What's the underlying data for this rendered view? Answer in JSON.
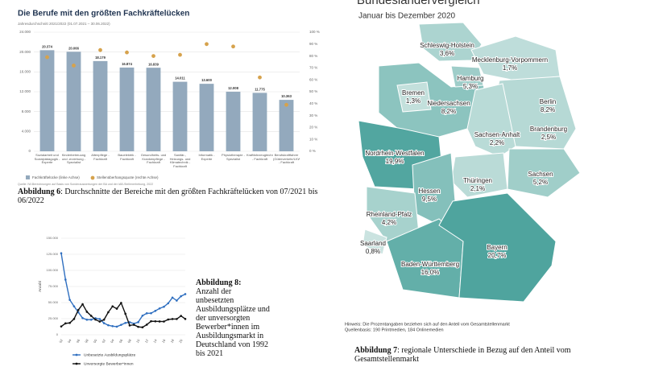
{
  "chart_data": [
    {
      "type": "bar",
      "title": "Die Berufe mit den größten Fachkräftelücken",
      "subtitle": "Jahresdurchschnitt 2021/2022 (01.07.2021 – 30.06.2022)",
      "categories": [
        "Sozialarbeit und Sozialpädagogik - Experte",
        "Kinderbetreuung und -erziehung - Spezialist",
        "Altenpflege - Fachkraft",
        "Bauelektrik - Fachkraft",
        "Gesundheits- und Krankenpflege - Fachkraft",
        "Sanitär-, Heizungs- und Klimatechnik - Fachkraft",
        "Informatik - Experte",
        "Physiotherapie - Spezialist",
        "Kraftfahrzeugtechnik - Fachkraft",
        "Berufskraftfahrer (Güterverkehr/LKW) - Fachkraft"
      ],
      "series": [
        {
          "name": "Fachkräftelücke (linke Achse)",
          "color": "#93a9bd",
          "values": [
            20374,
            20066,
            18179,
            16874,
            16839,
            14011,
            13600,
            12008,
            11775,
            10363
          ],
          "value_labels": [
            "20.374",
            "20.066",
            "18.179",
            "16.874",
            "16.839",
            "14.011",
            "13.600",
            "12.008",
            "11.775",
            "10.363"
          ]
        },
        {
          "name": "Stellenüberhangsquote (rechte Achse)",
          "color": "#d6a24c",
          "axis": "y2",
          "values": [
            79,
            72,
            85,
            83,
            80,
            81,
            90,
            88,
            62,
            39
          ]
        }
      ],
      "ylim": [
        0,
        24000
      ],
      "yticks": [
        0,
        {
          "value": 4000,
          "label": "4.000"
        },
        {
          "value": 8000,
          "label": "8.000"
        },
        {
          "value": 12000,
          "label": "12.000"
        },
        {
          "value": 16000,
          "label": "16.000"
        },
        {
          "value": 20000,
          "label": "20.000"
        },
        {
          "value": 24000,
          "label": "24.000"
        }
      ],
      "y2lim": [
        0,
        100
      ],
      "y2ticks": [
        {
          "value": 0,
          "label": "0 %"
        },
        {
          "value": 10,
          "label": "10 %"
        },
        {
          "value": 20,
          "label": "20 %"
        },
        {
          "value": 30,
          "label": "30 %"
        },
        {
          "value": 40,
          "label": "40 %"
        },
        {
          "value": 50,
          "label": "50 %"
        },
        {
          "value": 60,
          "label": "60 %"
        },
        {
          "value": 70,
          "label": "70 %"
        },
        {
          "value": 80,
          "label": "80 %"
        },
        {
          "value": 90,
          "label": "90 %"
        },
        {
          "value": 100,
          "label": "100 %"
        }
      ],
      "grid": true,
      "source": "Quelle: IW-Berechnungen auf Basis von Sonderauswertungen der BA und der IAB-Stellenerhebung, 2022"
    },
    {
      "type": "line",
      "ylabel": "Anzahl",
      "categories": [
        "92",
        null,
        "94",
        null,
        "96",
        null,
        "98",
        null,
        "00",
        null,
        "02",
        null,
        "04",
        null,
        "06",
        null,
        "08",
        null,
        "10",
        null,
        "12",
        null,
        "14",
        null,
        "16",
        null,
        "18",
        null,
        "20",
        null
      ],
      "series": [
        {
          "name": "Unbesetzte Ausbildungsplätze",
          "color": "#2f6fc0",
          "values": [
            126600,
            85700,
            54200,
            44200,
            34900,
            25900,
            23400,
            23400,
            25700,
            24500,
            18000,
            14800,
            13400,
            12600,
            15400,
            18400,
            19500,
            17300,
            19600,
            29700,
            33300,
            33500,
            37100,
            40900,
            43500,
            48900,
            57700,
            53100,
            59900,
            63200
          ]
        },
        {
          "name": "Unversorgte Bewerber*innen",
          "color": "#111111",
          "values": [
            12900,
            17700,
            18400,
            24600,
            38500,
            47400,
            35700,
            29400,
            23600,
            20500,
            23400,
            35000,
            44100,
            40500,
            49500,
            32700,
            14500,
            15500,
            12300,
            11600,
            15700,
            21000,
            20900,
            20700,
            20600,
            23700,
            24500,
            24500,
            29300,
            24600
          ]
        }
      ],
      "ylim": [
        0,
        150000
      ],
      "yticks": [
        0,
        {
          "value": 25000,
          "label": "25.000"
        },
        {
          "value": 50000,
          "label": "50.000"
        },
        {
          "value": 75000,
          "label": "75.000"
        },
        {
          "value": 100000,
          "label": "100.000"
        },
        {
          "value": 125000,
          "label": "125.000"
        },
        {
          "value": 150000,
          "label": "150.000"
        }
      ],
      "grid": true
    }
  ],
  "map": {
    "type": "choropleth",
    "title": "Bundesländervergleich",
    "subtitle": "Januar bis Dezember 2020",
    "regions": [
      "Schleswig-Holstein",
      "Mecklenburg-Vorpommern",
      "Niedersachsen",
      "Hamburg",
      "Bremen",
      "Berlin",
      "Brandenburg",
      "Sachsen-Anhalt",
      "Nordrhein-Westfalen",
      "Thüringen",
      "Sachsen",
      "Hessen",
      "Rheinland-Pfalz",
      "Saarland",
      "Baden-Württemberg",
      "Bayern"
    ],
    "values": [
      3.6,
      1.7,
      8.2,
      5.3,
      1.3,
      8.2,
      2.5,
      2.2,
      19.9,
      2.1,
      5.2,
      9.5,
      4.2,
      0.8,
      16.0,
      20.7
    ],
    "value_labels": [
      "3,6%",
      "1,7%",
      "8,2%",
      "5,3%",
      "1,3%",
      "8,2%",
      "2,5%",
      "2,2%",
      "19,9%",
      "2,1%",
      "5,2%",
      "9,5%",
      "4,2%",
      "0,8%",
      "16,0%",
      "20,7%"
    ],
    "note": "Hinweis: Die Prozentangaben beziehen sich auf den Anteil vom Gesamtstellenmarkt",
    "source": "Quellenbasis: 190 Printmedien, 184 Onlinemedien"
  },
  "captions": {
    "figure6": {
      "label": "Abbildung 6",
      "text": ": Durchschnitte der Bereiche mit den größten Fachkräftelücken von 07/2021 bis 06/2022"
    },
    "figure8": {
      "label": "Abbildung 8:",
      "text": "Anzahl der unbesetzten Ausbildungsplätze und der unversorgten Bewerber*innen im Ausbildungsmarkt in Deutschland von 1992 bis 2021"
    },
    "figure7": {
      "label": "Abbildung 7",
      "text": ": regionale Unterschiede in Bezug auf den Anteil vom Gesamtstellenmarkt"
    }
  }
}
